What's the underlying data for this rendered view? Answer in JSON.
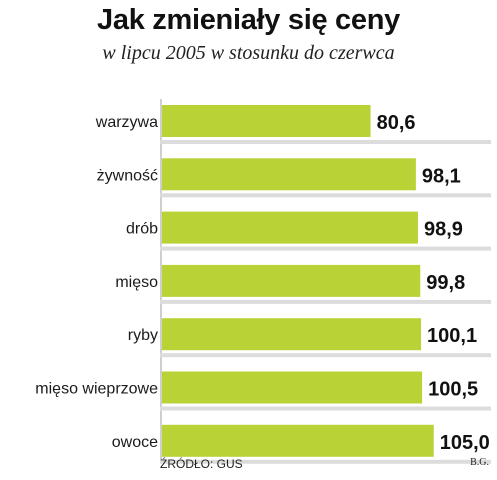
{
  "header": {
    "title": "Jak zmieniały się ceny",
    "subtitle": "w lipcu 2005 w stosunku do czerwca"
  },
  "chart_data": {
    "type": "bar",
    "orientation": "horizontal",
    "categories": [
      "warzywa",
      "żywność",
      "drób",
      "mięso",
      "ryby",
      "mięso wieprzowe",
      "owoce"
    ],
    "values": [
      80.6,
      98.1,
      98.9,
      99.8,
      100.1,
      100.5,
      105.0
    ],
    "value_labels": [
      "80,6",
      "98,1",
      "98,9",
      "99,8",
      "100,1",
      "100,5",
      "105,0"
    ],
    "bar_color": "#b9d336",
    "stripe_color": "#dcdcdc",
    "grid": false,
    "legend": "none"
  },
  "footer": {
    "source": "ŹRÓDŁO: GUS",
    "author": "B.G."
  }
}
